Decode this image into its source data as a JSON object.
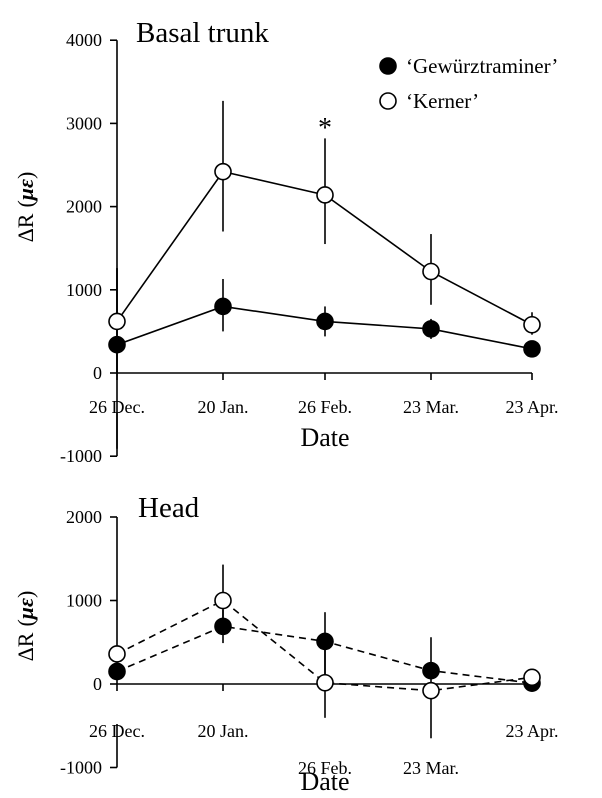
{
  "chart_data": [
    {
      "type": "line",
      "title": "Basal trunk",
      "xlabel": "Date",
      "ylabel": "ΔR (με)",
      "ylabel_parts": [
        "ΔR",
        "(",
        "με",
        ")"
      ],
      "categories": [
        "26 Dec.",
        "20 Jan.",
        "26 Feb.",
        "23 Mar.",
        "23 Apr."
      ],
      "ylim": [
        -1000,
        4000
      ],
      "yticks": [
        "-1000",
        "0",
        "1000",
        "2000",
        "3000",
        "4000"
      ],
      "ytick_values": [
        -1000,
        0,
        1000,
        2000,
        3000,
        4000
      ],
      "line_style": "solid",
      "legend_position": "top-right",
      "annotations": [
        {
          "text": "*",
          "category_index": 2,
          "y": 3050
        }
      ],
      "series": [
        {
          "name": "‘Gewürztraminer’",
          "marker": "filled-circle",
          "color": "#000000",
          "values": [
            340,
            800,
            620,
            530,
            290
          ],
          "err_low": [
            1250,
            300,
            180,
            120,
            80
          ],
          "err_high": [
            920,
            330,
            180,
            120,
            80
          ]
        },
        {
          "name": "‘Kerner’",
          "marker": "open-circle",
          "color": "#000000",
          "values": [
            620,
            2420,
            2140,
            1220,
            580
          ],
          "err_low": [
            620,
            720,
            590,
            400,
            120
          ],
          "err_high": [
            640,
            850,
            680,
            450,
            150
          ]
        }
      ]
    },
    {
      "type": "line",
      "title": "Head",
      "xlabel": "Date",
      "ylabel": "ΔR (με)",
      "ylabel_parts": [
        "ΔR",
        "(",
        "με",
        ")"
      ],
      "categories": [
        "26 Dec.",
        "20 Jan.",
        "26 Feb.",
        "23 Mar.",
        "23 Apr."
      ],
      "category_label_rows": [
        0,
        0,
        1,
        1,
        0
      ],
      "ylim": [
        -1000,
        2000
      ],
      "yticks": [
        "-1000",
        "0",
        "1000",
        "2000"
      ],
      "ytick_values": [
        -1000,
        0,
        1000,
        2000
      ],
      "line_style": "dashed",
      "series": [
        {
          "name": "‘Gewürztraminer’",
          "marker": "filled-circle",
          "color": "#000000",
          "values": [
            150,
            690,
            510,
            160,
            10
          ],
          "err_low": [
            80,
            200,
            520,
            100,
            60
          ],
          "err_high": [
            80,
            200,
            350,
            100,
            60
          ]
        },
        {
          "name": "‘Kerner’",
          "marker": "open-circle",
          "color": "#000000",
          "values": [
            360,
            1000,
            15,
            -80,
            80
          ],
          "err_low": [
            100,
            230,
            420,
            570,
            80
          ],
          "err_high": [
            100,
            430,
            420,
            640,
            80
          ]
        }
      ]
    }
  ]
}
